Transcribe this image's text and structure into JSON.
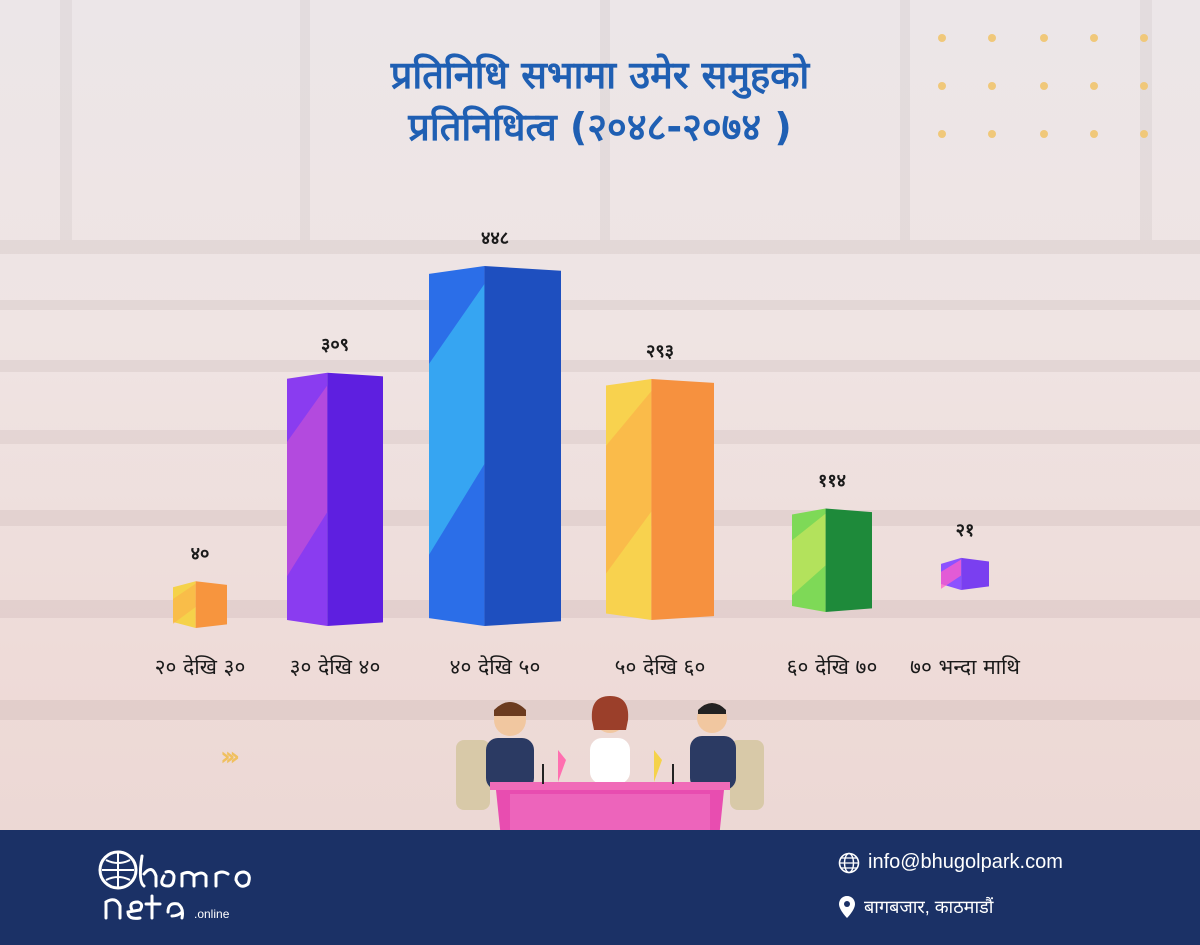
{
  "title_line1": "प्रतिनिधि सभामा उमेर समुहको",
  "title_line2": "प्रतिनिधित्व (२०४८-२०७४ )",
  "chart_data": {
    "type": "bar",
    "title": "प्रतिनिधि सभामा उमेर समुहको प्रतिनिधित्व (२०४८-२०७४ )",
    "categories": [
      "२० देखि ३०",
      "३० देखि ४०",
      "४० देखि ५०",
      "५० देखि ६०",
      "६० देखि ७०",
      "७० भन्दा माथि"
    ],
    "values": [
      40,
      309,
      448,
      293,
      114,
      21
    ],
    "value_labels": [
      "४०",
      "३०९",
      "४४८",
      "२९३",
      "११४",
      "२१"
    ],
    "colors": [
      {
        "front": "#f5d24a",
        "side": "#f7953e",
        "accent": "#f9b54a"
      },
      {
        "front": "#8a3cf0",
        "side": "#5e1fe0",
        "accent": "#c04fd8"
      },
      {
        "front": "#2b6ee8",
        "side": "#1e4fbf",
        "accent": "#3bb8f5"
      },
      {
        "front": "#f8d24e",
        "side": "#f6913f",
        "accent": "#fbb34a"
      },
      {
        "front": "#7ed957",
        "side": "#1e8a3a",
        "accent": "#c6e45e"
      },
      {
        "front": "#8c52ff",
        "side": "#7a3ff0",
        "accent": "#ff5fc8"
      }
    ],
    "grid": false,
    "legend": "none"
  },
  "footer": {
    "logo_text": "hamro neta.online",
    "email": "info@bhugolpark.com",
    "address": "बागबजार, काठमाडौं",
    "email_icon": "globe-icon",
    "address_icon": "location-pin-icon"
  }
}
